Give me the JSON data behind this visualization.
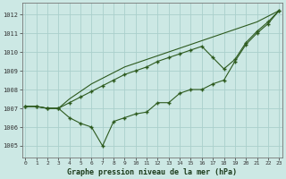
{
  "x": [
    0,
    1,
    2,
    3,
    4,
    5,
    6,
    7,
    8,
    9,
    10,
    11,
    12,
    13,
    14,
    15,
    16,
    17,
    18,
    19,
    20,
    21,
    22,
    23
  ],
  "line_low": [
    1007.1,
    1007.1,
    1007.0,
    1007.0,
    1006.5,
    1006.2,
    1006.0,
    1005.0,
    1006.3,
    1006.5,
    1006.7,
    1006.8,
    1007.3,
    1007.3,
    1007.8,
    1008.0,
    1008.0,
    1008.3,
    1008.5,
    1009.5,
    1010.4,
    1011.0,
    1011.5,
    1012.2
  ],
  "line_upper1": [
    1007.1,
    1007.1,
    1007.0,
    1007.0,
    1007.5,
    1007.9,
    1008.3,
    1008.6,
    1008.9,
    1009.2,
    1009.4,
    1009.6,
    1009.8,
    1010.0,
    1010.2,
    1010.4,
    1010.6,
    1010.8,
    1011.0,
    1011.2,
    1011.4,
    1011.6,
    1011.9,
    1012.2
  ],
  "line_upper2": [
    1007.1,
    1007.1,
    1007.0,
    1007.0,
    1007.3,
    1007.6,
    1007.9,
    1008.2,
    1008.5,
    1008.8,
    1009.0,
    1009.2,
    1009.5,
    1009.7,
    1009.9,
    1010.1,
    1010.3,
    1009.7,
    1009.1,
    1009.6,
    1010.5,
    1011.1,
    1011.6,
    1012.2
  ],
  "bg_color": "#cce8e4",
  "grid_color": "#aacfcc",
  "line_color": "#2d5a1e",
  "xlabel": "Graphe pression niveau de la mer (hPa)",
  "ylim": [
    1004.4,
    1012.6
  ],
  "yticks": [
    1005,
    1006,
    1007,
    1008,
    1009,
    1010,
    1011,
    1012
  ],
  "xticks": [
    0,
    1,
    2,
    3,
    4,
    5,
    6,
    7,
    8,
    9,
    10,
    11,
    12,
    13,
    14,
    15,
    16,
    17,
    18,
    19,
    20,
    21,
    22,
    23
  ]
}
